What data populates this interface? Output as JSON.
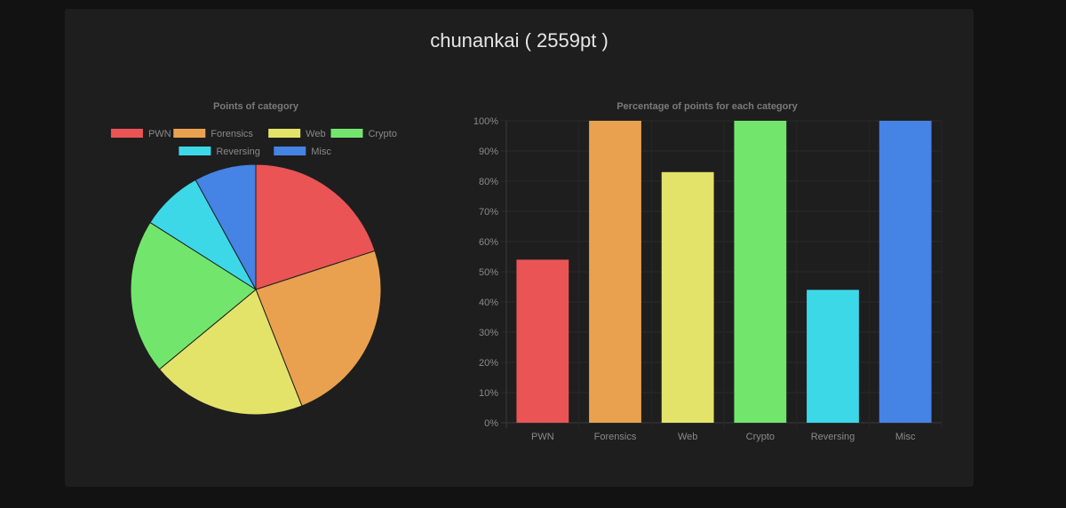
{
  "page": {
    "title": "chunankai ( 2559pt )"
  },
  "colors": {
    "PWN": "#ea5455",
    "Forensics": "#e9a150",
    "Web": "#e3e36a",
    "Crypto": "#72e66c",
    "Reversing": "#3dd8e8",
    "Misc": "#4583e4"
  },
  "chart_data": [
    {
      "type": "pie",
      "title": "Points of category",
      "legend_position": "top",
      "categories": [
        "PWN",
        "Forensics",
        "Web",
        "Crypto",
        "Reversing",
        "Misc"
      ],
      "values": [
        20,
        24,
        20,
        20,
        8,
        8
      ]
    },
    {
      "type": "bar",
      "title": "Percentage of points for each category",
      "categories": [
        "PWN",
        "Forensics",
        "Web",
        "Crypto",
        "Reversing",
        "Misc"
      ],
      "values": [
        54,
        100,
        83,
        100,
        44,
        100
      ],
      "ylim": [
        0,
        100
      ],
      "yticks": [
        "0%",
        "10%",
        "20%",
        "30%",
        "40%",
        "50%",
        "60%",
        "70%",
        "80%",
        "90%",
        "100%"
      ],
      "grid": true
    }
  ]
}
